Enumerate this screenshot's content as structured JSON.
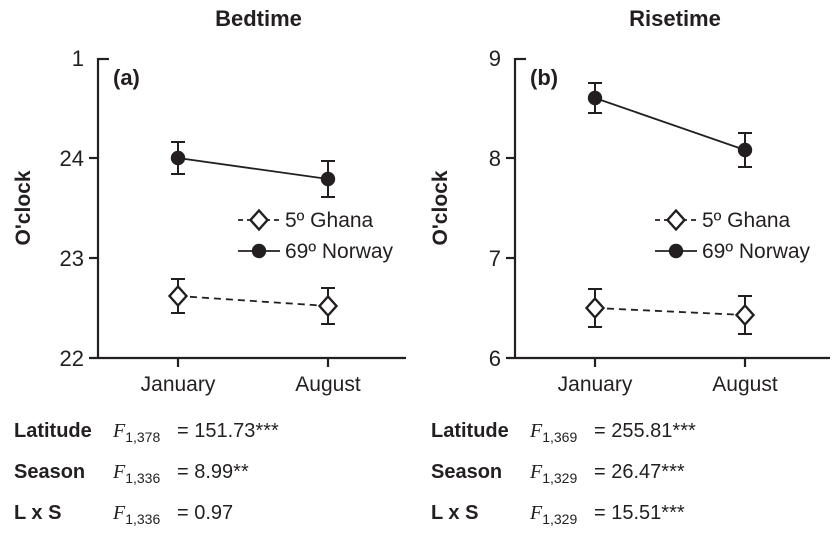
{
  "colors": {
    "ink": "#231f20",
    "background": "#ffffff"
  },
  "chart_data": [
    {
      "type": "line",
      "title": "Bedtime",
      "panel_label": "(a)",
      "ylabel": "O'clock",
      "xlabel": "",
      "categories": [
        "January",
        "August"
      ],
      "ylim": [
        22,
        25
      ],
      "yticks": [
        {
          "value": 25,
          "label": "1"
        },
        {
          "value": 24,
          "label": "24"
        },
        {
          "value": 23,
          "label": "23"
        },
        {
          "value": 22,
          "label": "22"
        }
      ],
      "grid": false,
      "legend_position": "inside-right-middle",
      "series": [
        {
          "name": "5º Ghana",
          "marker": "open-diamond",
          "line": "dashed",
          "values": [
            22.62,
            22.52
          ],
          "errors": [
            0.17,
            0.18
          ]
        },
        {
          "name": "69º Norway",
          "marker": "filled-circle",
          "line": "solid",
          "values": [
            24.0,
            23.79
          ],
          "errors": [
            0.16,
            0.18
          ]
        }
      ],
      "stats": [
        {
          "label": "Latitude",
          "stat": "F",
          "df": "1,378",
          "value": "= 151.73***"
        },
        {
          "label": "Season",
          "stat": "F",
          "df": "1,336",
          "value": "= 8.99**"
        },
        {
          "label": "L x S",
          "stat": "F",
          "df": "1,336",
          "value": "= 0.97"
        }
      ]
    },
    {
      "type": "line",
      "title": "Risetime",
      "panel_label": "(b)",
      "ylabel": "O'clock",
      "xlabel": "",
      "categories": [
        "January",
        "August"
      ],
      "ylim": [
        6,
        9
      ],
      "yticks": [
        {
          "value": 9,
          "label": "9"
        },
        {
          "value": 8,
          "label": "8"
        },
        {
          "value": 7,
          "label": "7"
        },
        {
          "value": 6,
          "label": "6"
        }
      ],
      "grid": false,
      "legend_position": "inside-right-middle",
      "series": [
        {
          "name": "5º Ghana",
          "marker": "open-diamond",
          "line": "dashed",
          "values": [
            6.5,
            6.43
          ],
          "errors": [
            0.19,
            0.19
          ]
        },
        {
          "name": "69º Norway",
          "marker": "filled-circle",
          "line": "solid",
          "values": [
            8.6,
            8.08
          ],
          "errors": [
            0.15,
            0.17
          ]
        }
      ],
      "stats": [
        {
          "label": "Latitude",
          "stat": "F",
          "df": "1,369",
          "value": "= 255.81***"
        },
        {
          "label": "Season",
          "stat": "F",
          "df": "1,329",
          "value": "= 26.47***"
        },
        {
          "label": "L x S",
          "stat": "F",
          "df": "1,329",
          "value": "= 15.51***"
        }
      ]
    }
  ]
}
